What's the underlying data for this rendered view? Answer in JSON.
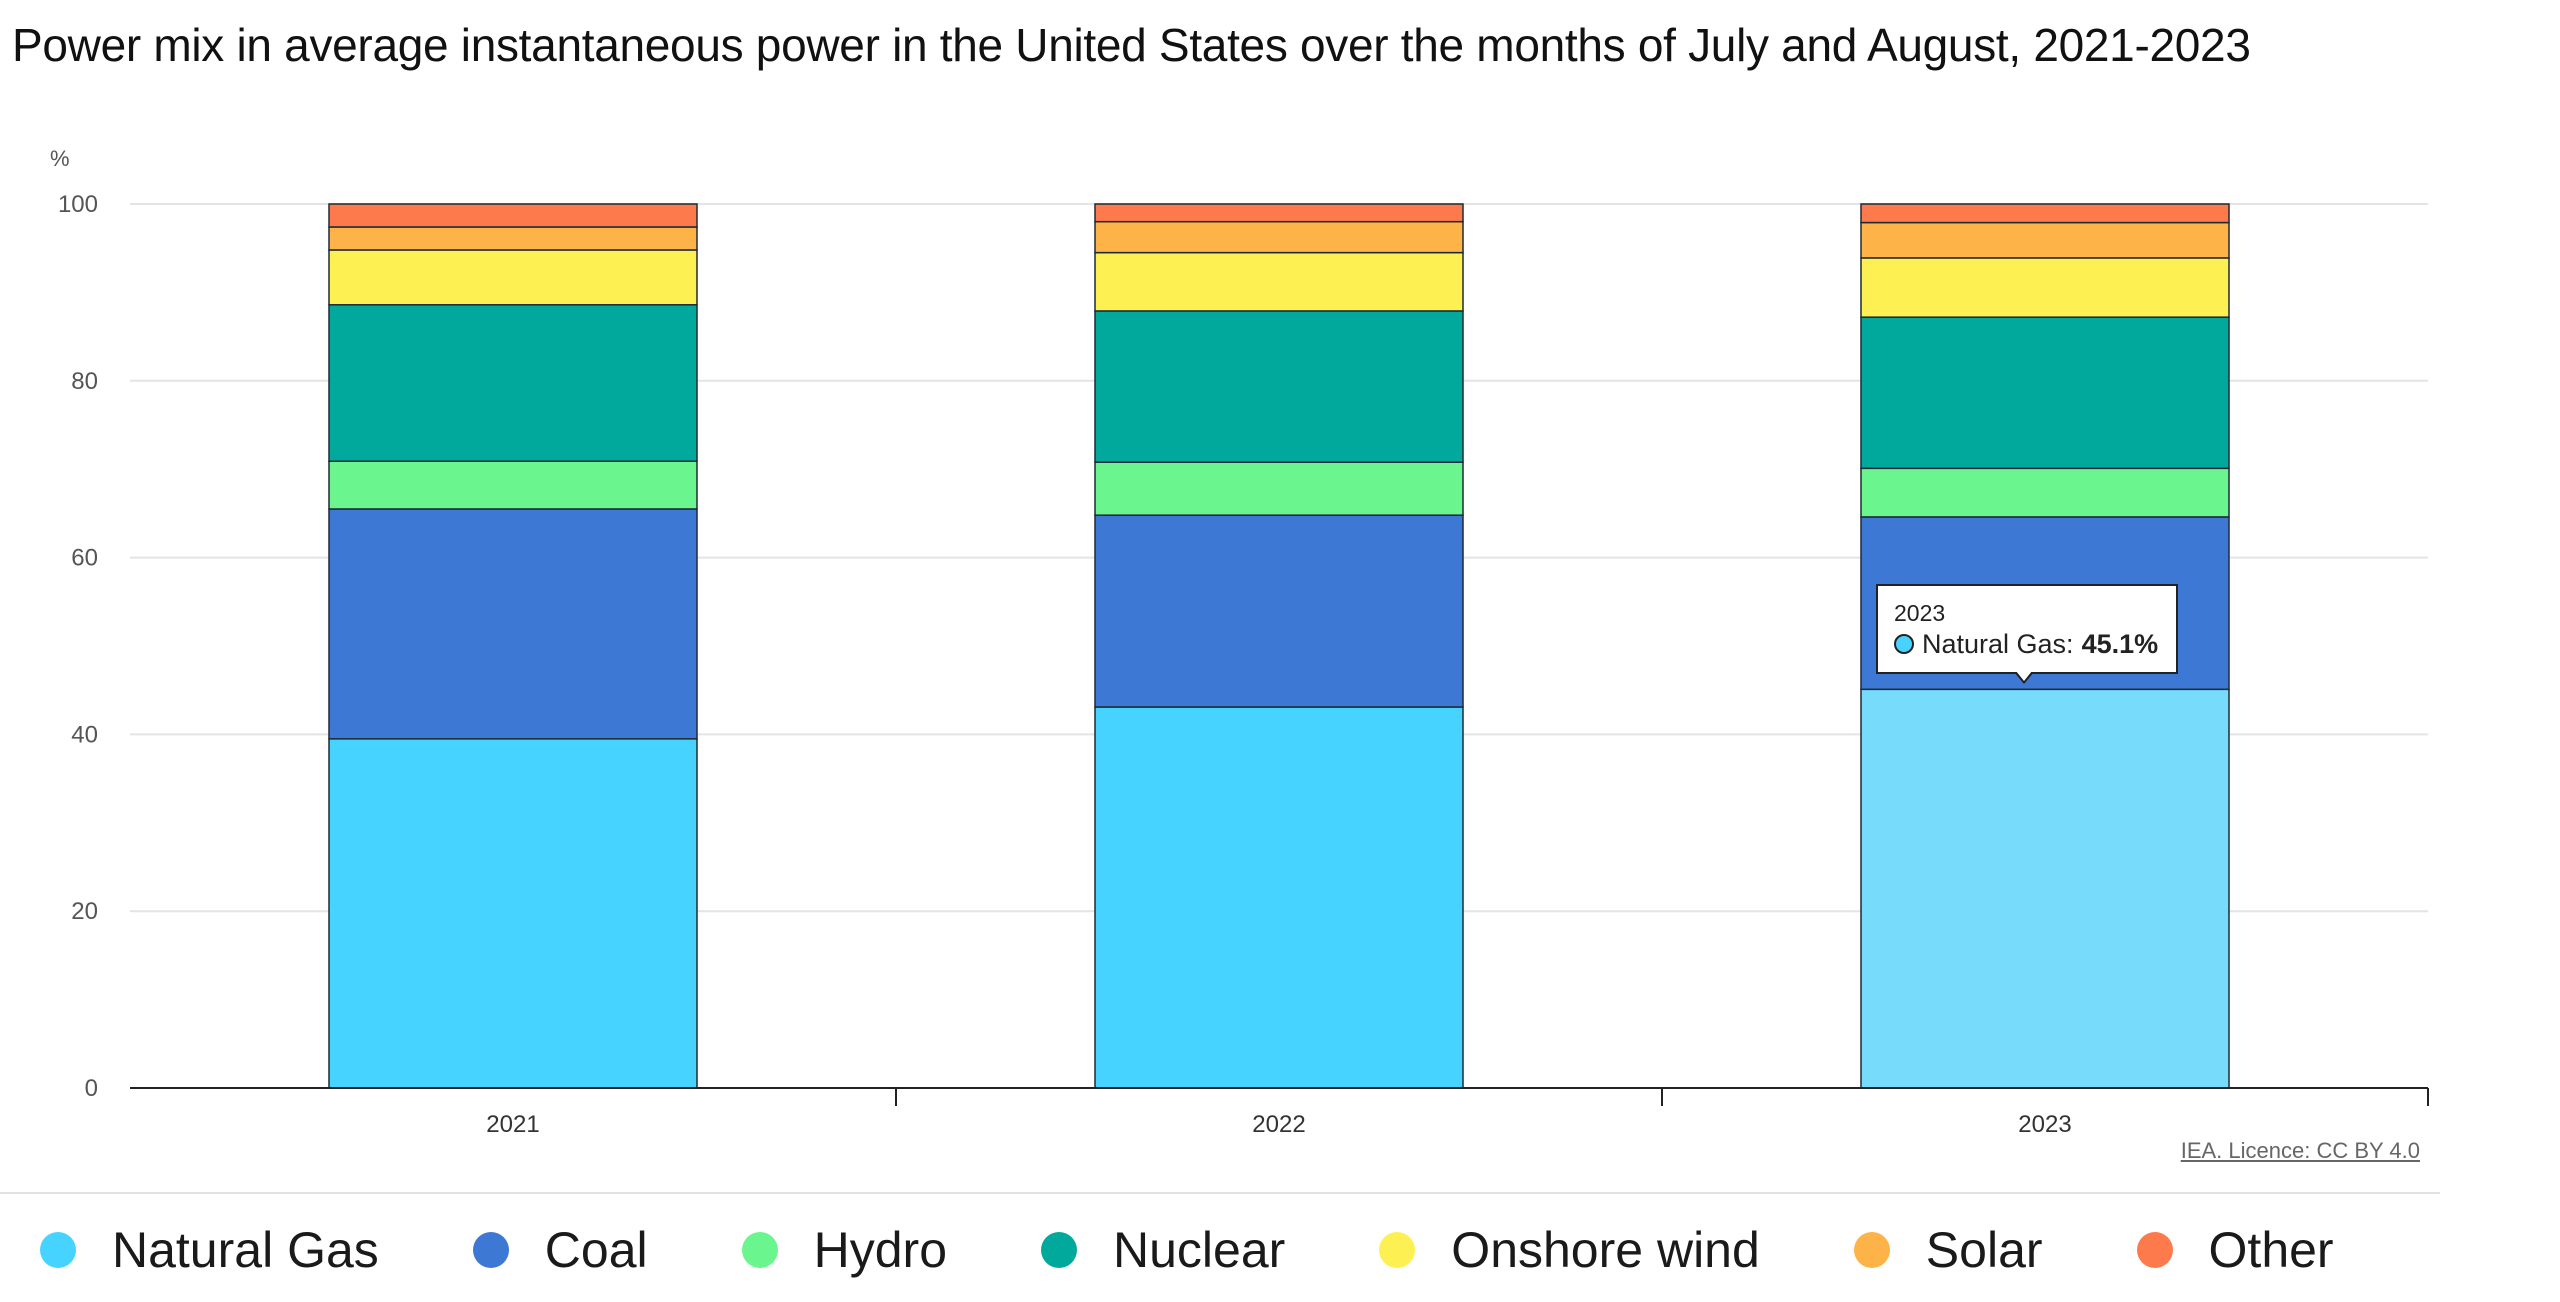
{
  "title": "Power mix in average instantaneous power in the United States over the months of July and August, 2021-2023",
  "source": "IEA. Licence: CC BY 4.0",
  "chart_data": {
    "type": "bar",
    "stacked": true,
    "title": "Power mix in average instantaneous power in the United States over the months of July and August, 2021-2023",
    "ylabel": "%",
    "ylim": [
      0,
      100
    ],
    "yticks": [
      "0",
      "20",
      "40",
      "60",
      "80",
      "100"
    ],
    "grid": true,
    "legend_position": "bottom",
    "categories": [
      "2021",
      "2022",
      "2023"
    ],
    "series": [
      {
        "name": "Natural Gas",
        "color": "#47d3ff",
        "values": [
          39.5,
          43.1,
          45.1
        ]
      },
      {
        "name": "Coal",
        "color": "#3d78d4",
        "values": [
          26.0,
          21.7,
          19.5
        ]
      },
      {
        "name": "Hydro",
        "color": "#6af58e",
        "values": [
          5.4,
          6.0,
          5.5
        ]
      },
      {
        "name": "Nuclear",
        "color": "#00a99b",
        "values": [
          17.7,
          17.1,
          17.1
        ]
      },
      {
        "name": "Onshore wind",
        "color": "#fdf053",
        "values": [
          6.2,
          6.6,
          6.7
        ]
      },
      {
        "name": "Solar",
        "color": "#fdb347",
        "values": [
          2.6,
          3.5,
          4.0
        ]
      },
      {
        "name": "Other",
        "color": "#fd7a4d",
        "values": [
          2.6,
          2.0,
          2.1
        ]
      }
    ]
  },
  "tooltip": {
    "year": "2023",
    "label": "Natural Gas:",
    "value": "45.1%",
    "dot_color": "#47d3ff"
  }
}
